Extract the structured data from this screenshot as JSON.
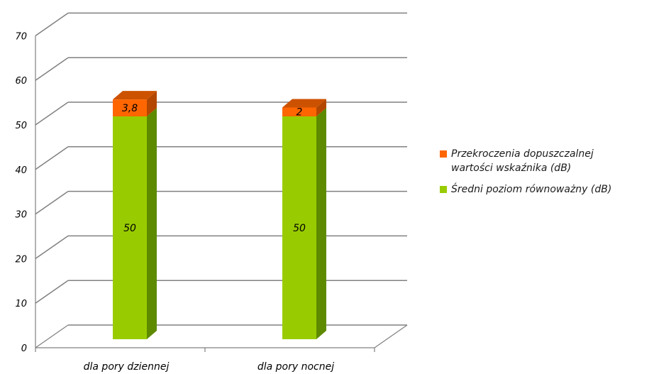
{
  "chart_data": {
    "type": "bar",
    "stacked": true,
    "three_d": true,
    "categories": [
      "dla pory dziennej",
      "dla pory nocnej"
    ],
    "series": [
      {
        "name": "Średni poziom równoważny (dB)",
        "values": [
          50,
          50
        ],
        "labels": [
          "50",
          "50"
        ],
        "color": "#99cc00",
        "side_color": "#5e8a00",
        "top_color": "#7aa600"
      },
      {
        "name": "Przekroczenia dopuszczalnej wartości wskaźnika (dB)",
        "legend_lines": [
          "Przekroczenia dopuszczalnej",
          "wartości wskaźnika (dB)"
        ],
        "values": [
          3.8,
          2
        ],
        "labels": [
          "3,8",
          "2"
        ],
        "color": "#ff6600",
        "side_color": "#b34700",
        "top_color": "#cc5200"
      }
    ],
    "yticks": [
      "0",
      "10",
      "20",
      "30",
      "40",
      "50",
      "60",
      "70"
    ],
    "ylim": [
      0,
      70
    ],
    "grid": true,
    "legend_position": "right",
    "gridline_color": "#808080"
  }
}
